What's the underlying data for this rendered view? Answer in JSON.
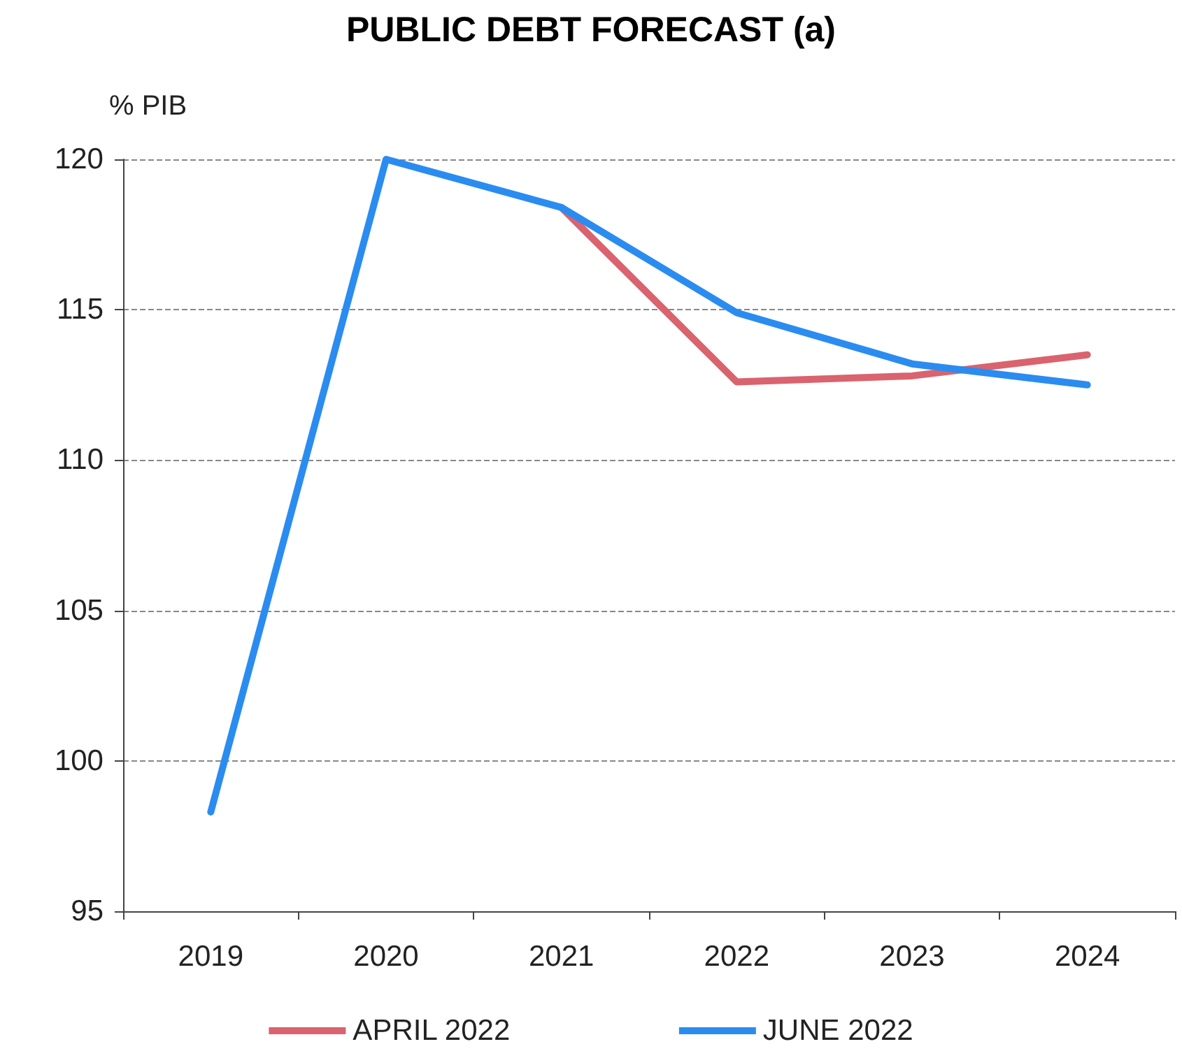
{
  "chart_data": {
    "type": "line",
    "title": "PUBLIC DEBT FORECAST (a)",
    "ylabel": "% PIB",
    "categories": [
      "2019",
      "2020",
      "2021",
      "2022",
      "2023",
      "2024"
    ],
    "series": [
      {
        "name": "APRIL 2022",
        "color": "#d9636e",
        "values": [
          null,
          null,
          118.4,
          112.6,
          112.8,
          113.5
        ]
      },
      {
        "name": "JUNE 2022",
        "color": "#2b8cf0",
        "values": [
          98.3,
          120.0,
          118.4,
          114.9,
          113.2,
          112.5
        ]
      }
    ],
    "ylim": [
      95,
      120
    ],
    "yticks": [
      95,
      100,
      105,
      110,
      115,
      120
    ],
    "grid": "y",
    "legend": "bottom",
    "marker": "none",
    "line_style": "solid"
  }
}
